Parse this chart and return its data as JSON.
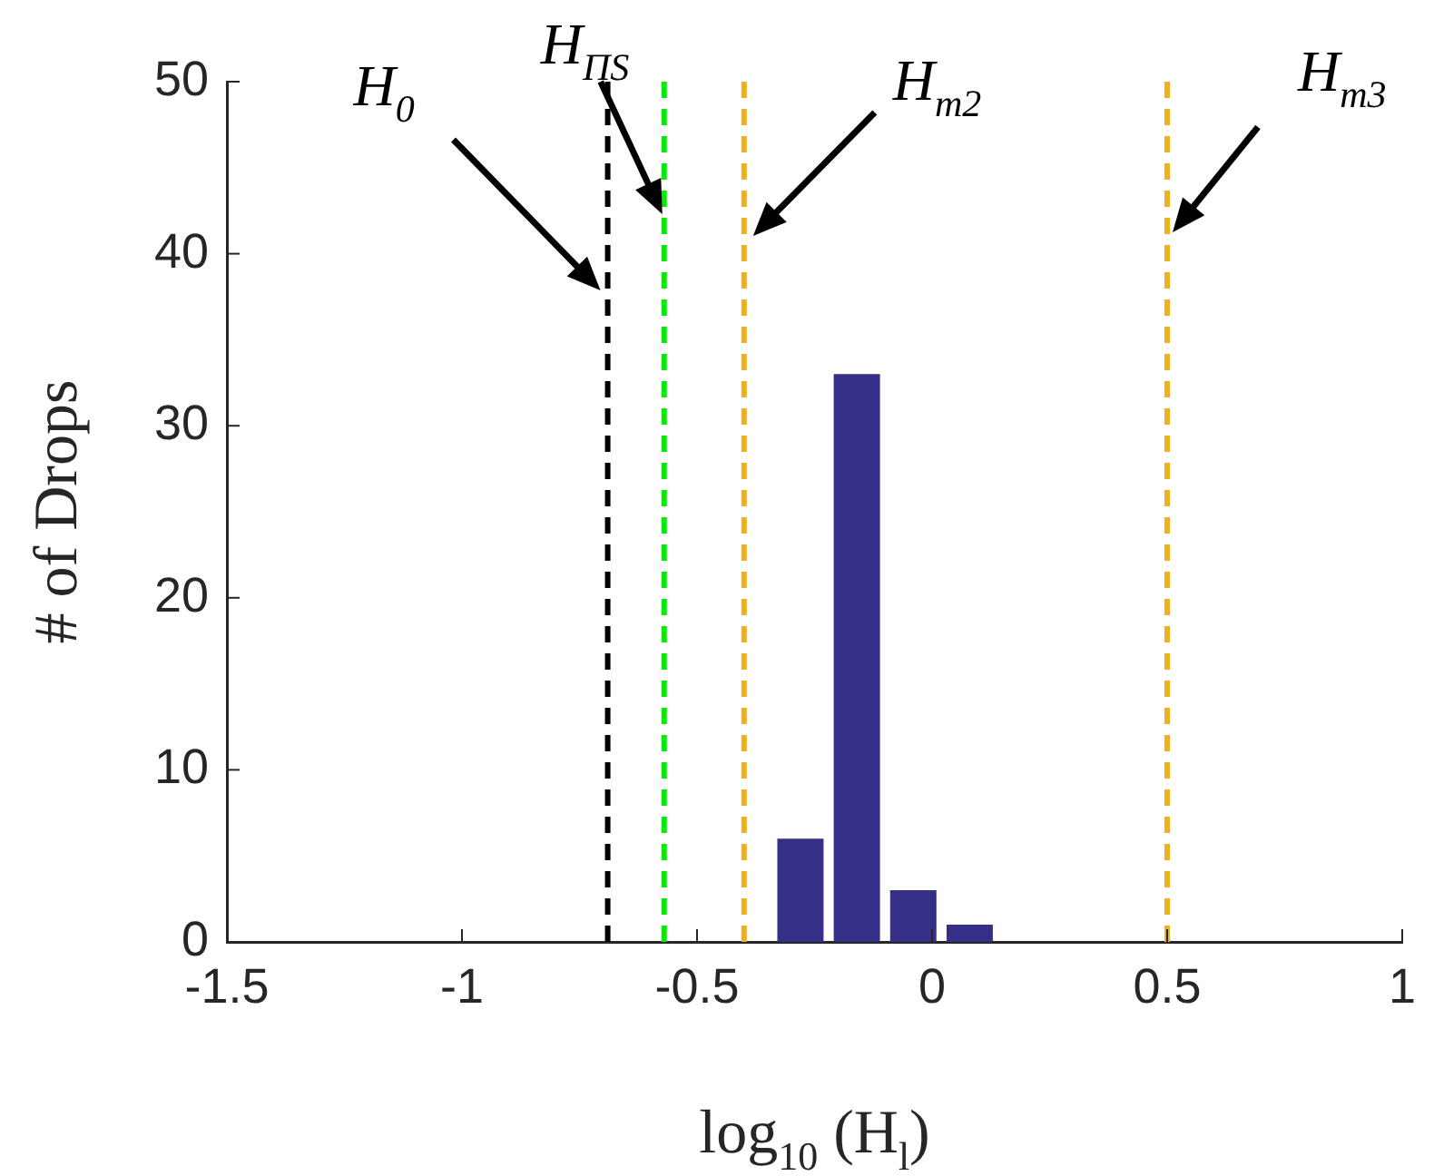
{
  "chart_data": {
    "type": "histogram",
    "xlabel": "log$_{10}$ (H$_{l}$)",
    "ylabel": "# of Drops",
    "bins": [
      -0.34,
      -0.22,
      -0.1,
      0.02,
      0.14
    ],
    "values": [
      6,
      33,
      3,
      1
    ],
    "color": "#352f87",
    "xlim": [
      -1.5,
      1
    ],
    "xticks": [
      -1.5,
      -1,
      -0.5,
      0,
      0.5,
      1
    ],
    "ylim": [
      0,
      50
    ],
    "yticks": [
      0,
      10,
      20,
      30,
      40,
      50
    ],
    "grid": false,
    "legend": false,
    "ref_lines": [
      {
        "axis": "x",
        "value": -0.69,
        "label": "H$_{0}$",
        "color": "#000000",
        "line_style": "dashed"
      },
      {
        "axis": "x",
        "value": -0.57,
        "label": "H$_{ΠS}$",
        "color": "#00ee00",
        "line_style": "dashed"
      },
      {
        "axis": "x",
        "value": -0.4,
        "label": "H$_{m2}$",
        "color": "#edb120",
        "line_style": "dashed"
      },
      {
        "axis": "x",
        "value": 0.5,
        "label": "H$_{m3}$",
        "color": "#edb120",
        "line_style": "dashed"
      }
    ]
  }
}
